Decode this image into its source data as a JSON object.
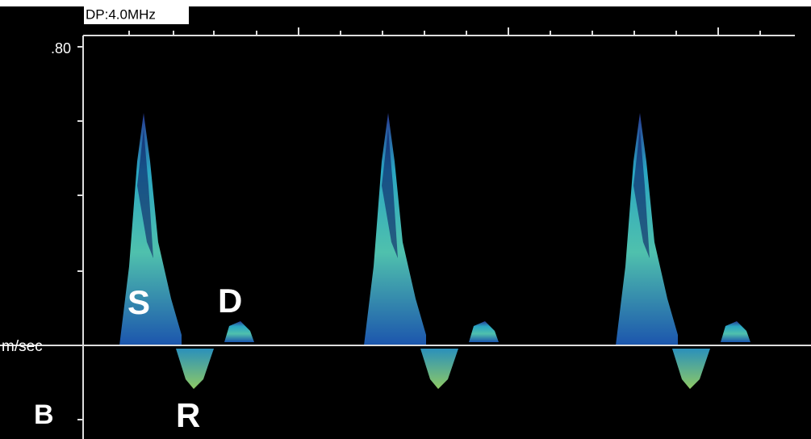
{
  "header": {
    "label": "DP:4.0MHz"
  },
  "axis": {
    "top_label": ".80",
    "unit_label": "m/sec",
    "bottom_label": "B"
  },
  "annotations": {
    "s": "S",
    "d": "D",
    "r": "R"
  }
}
